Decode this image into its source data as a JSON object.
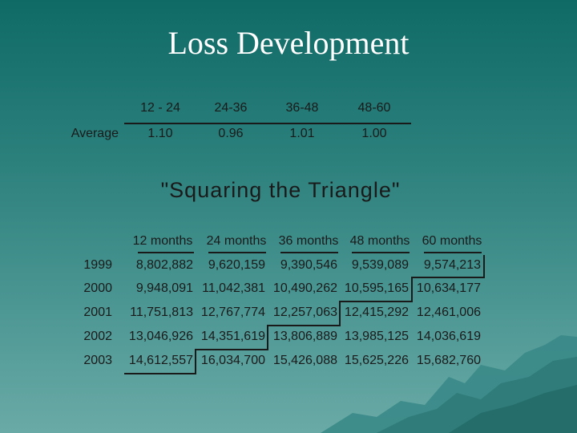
{
  "title": "Loss Development",
  "factors": {
    "row_label": "Average",
    "headers": [
      "12 - 24",
      "24-36",
      "36-48",
      "48-60"
    ],
    "values": [
      "1.10",
      "0.96",
      "1.01",
      "1.00"
    ]
  },
  "triangle": {
    "heading": "\"Squaring the Triangle\"",
    "headers": [
      "12 months",
      "24 months",
      "36 months",
      "48 months",
      "60 months"
    ],
    "rows": [
      {
        "year": "1999",
        "values": [
          "8,802,882",
          "9,620,159",
          "9,390,546",
          "9,539,089",
          "9,574,213"
        ]
      },
      {
        "year": "2000",
        "values": [
          "9,948,091",
          "11,042,381",
          "10,490,262",
          "10,595,165",
          "10,634,177"
        ]
      },
      {
        "year": "2001",
        "values": [
          "11,751,813",
          "12,767,774",
          "12,257,063",
          "12,415,292",
          "12,461,006"
        ]
      },
      {
        "year": "2002",
        "values": [
          "13,046,926",
          "14,351,619",
          "13,806,889",
          "13,985,125",
          "14,036,619"
        ]
      },
      {
        "year": "2003",
        "values": [
          "14,612,557",
          "16,034,700",
          "15,426,088",
          "15,625,226",
          "15,682,760"
        ]
      }
    ]
  },
  "colors": {
    "text": "#1a1a1a",
    "title": "#ffffff",
    "accent": "#0f6a66"
  }
}
